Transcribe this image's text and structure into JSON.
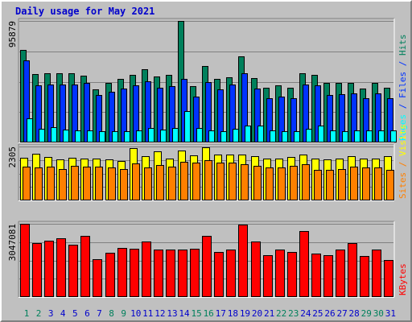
{
  "chart_data": {
    "type": "bar",
    "title": "Daily usage for May 2021",
    "categories": [
      "1",
      "2",
      "3",
      "4",
      "5",
      "6",
      "7",
      "8",
      "9",
      "10",
      "11",
      "12",
      "13",
      "14",
      "15",
      "16",
      "17",
      "18",
      "19",
      "20",
      "21",
      "22",
      "23",
      "24",
      "25",
      "26",
      "27",
      "28",
      "29",
      "30",
      "31"
    ],
    "weekend_days": [
      "1",
      "2",
      "8",
      "9",
      "15",
      "16",
      "22",
      "23",
      "29",
      "30"
    ],
    "panels": [
      {
        "name": "hits-files-pages",
        "max_label": "95879",
        "ymax": 95879,
        "series": [
          {
            "name": "Hits",
            "color": "#00805c",
            "values": [
              73000,
              53800,
              54500,
              54500,
              54500,
              53000,
              41900,
              47300,
              50000,
              53400,
              57900,
              52000,
              53400,
              95879,
              44600,
              60300,
              50400,
              51200,
              67700,
              50700,
              43300,
              45300,
              43300,
              54500,
              53400,
              46800,
              46800,
              47300,
              42500,
              46800,
              43300
            ]
          },
          {
            "name": "Files",
            "color": "#0033ff",
            "values": [
              65000,
              44800,
              45500,
              45500,
              45500,
              47000,
              37500,
              40300,
              42700,
              45200,
              48000,
              43400,
              44700,
              50300,
              36400,
              47800,
              41600,
              45500,
              54500,
              42700,
              34900,
              35900,
              34900,
              45500,
              44800,
              37500,
              38100,
              38800,
              34900,
              38800,
              34900
            ]
          },
          {
            "name": "Pages",
            "color": "#00ffff",
            "values": [
              18800,
              10500,
              12300,
              10300,
              9600,
              9800,
              8800,
              9000,
              8800,
              9600,
              11600,
              10300,
              11300,
              24600,
              11300,
              9600,
              8800,
              11100,
              13300,
              13100,
              9600,
              9200,
              9200,
              10700,
              13600,
              9400,
              9000,
              9400,
              9400,
              9400,
              9400
            ]
          }
        ]
      },
      {
        "name": "visits-sites",
        "max_label": "2305",
        "ymax": 2305,
        "series": [
          {
            "name": "Visits",
            "color": "#ffff00",
            "values": [
              1830,
              2000,
              1860,
              1750,
              1830,
              1800,
              1800,
              1760,
              1680,
              2230,
              1880,
              2100,
              1790,
              2140,
              1910,
              2270,
              1960,
              1960,
              1960,
              1880,
              1800,
              1790,
              1850,
              1960,
              1800,
              1760,
              1800,
              1900,
              1790,
              1800,
              1880
            ]
          },
          {
            "name": "Sites",
            "color": "#ff8000",
            "values": [
              1450,
              1420,
              1450,
              1350,
              1470,
              1450,
              1450,
              1400,
              1350,
              1570,
              1400,
              1500,
              1450,
              1660,
              1630,
              1730,
              1610,
              1600,
              1560,
              1480,
              1420,
              1400,
              1480,
              1560,
              1300,
              1300,
              1340,
              1450,
              1400,
              1400,
              1300
            ]
          }
        ]
      },
      {
        "name": "kbytes",
        "max_label": "3047081",
        "ymax": 3047081,
        "series": [
          {
            "name": "KBytes",
            "color": "#ff0000",
            "values": [
              3047081,
              2260000,
              2360000,
              2450000,
              2160000,
              2550000,
              1560000,
              1840000,
              2050000,
              2020000,
              2320000,
              1960000,
              1970000,
              1970000,
              2020000,
              2560000,
              1880000,
              1960000,
              3000000,
              2320000,
              1740000,
              1960000,
              1880000,
              2760000,
              1800000,
              1740000,
              1960000,
              2240000,
              1720000,
              1970000,
              1550000
            ]
          }
        ]
      }
    ],
    "side_labels": [
      {
        "parts": [
          {
            "text": "Pages",
            "color": "#00ffff"
          },
          {
            "text": " / ",
            "color": "#0033ff"
          },
          {
            "text": "Files",
            "color": "#0033ff"
          },
          {
            "text": " / ",
            "color": "#0033ff"
          },
          {
            "text": "Hits",
            "color": "#00805c"
          }
        ]
      },
      {
        "parts": [
          {
            "text": "Sites",
            "color": "#ff8000"
          },
          {
            "text": " / ",
            "color": "#ff8000"
          },
          {
            "text": "Visits",
            "color": "#ffff00"
          }
        ]
      },
      {
        "parts": [
          {
            "text": "KBytes",
            "color": "#ff0000"
          }
        ]
      }
    ],
    "colors": {
      "weekday_label": "#0000cc",
      "weekend_label": "#00805c",
      "title": "#0000cc",
      "max_label": "#000000"
    }
  }
}
